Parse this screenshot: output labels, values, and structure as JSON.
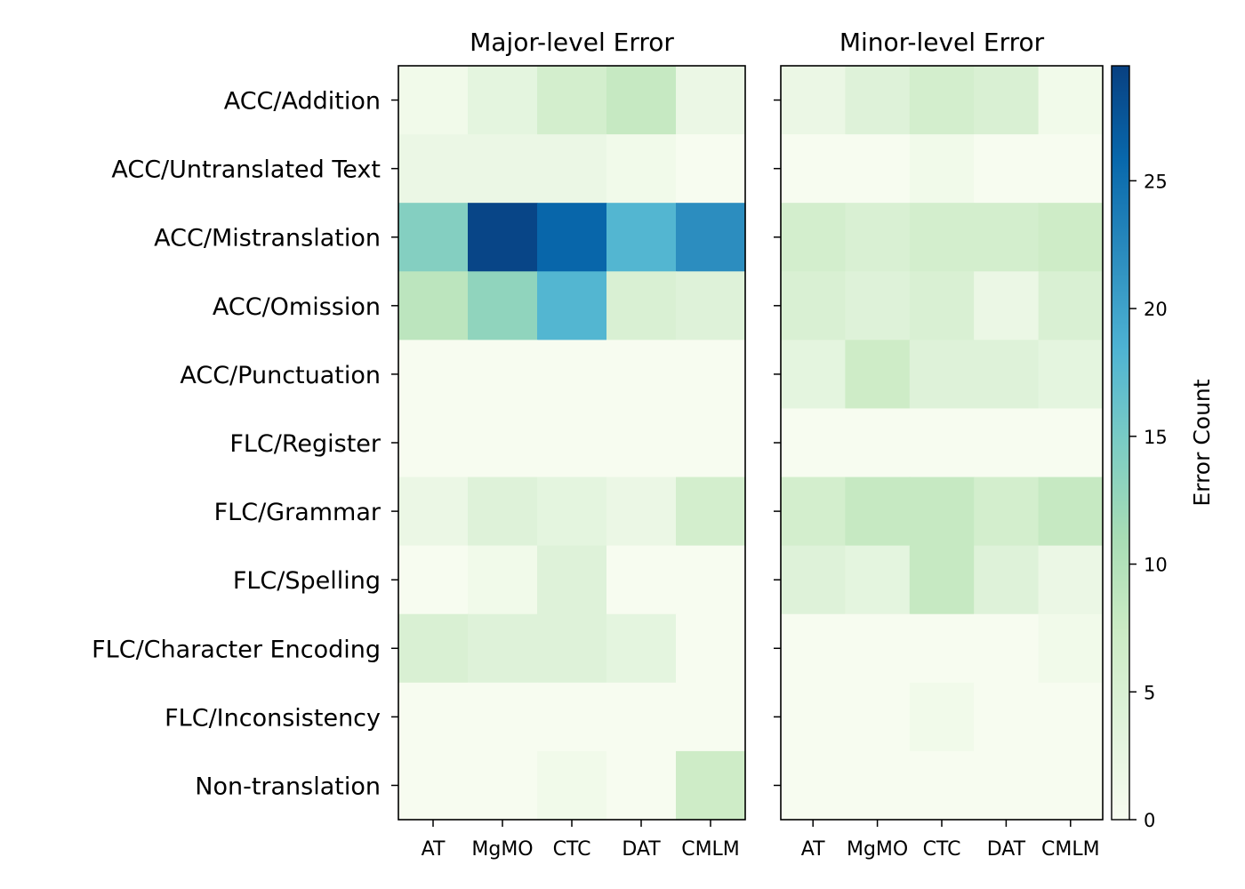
{
  "chart_data": {
    "type": "heatmap",
    "colormap": "GnBu",
    "colorbar": {
      "label": "Error Count",
      "min": 0,
      "max": 29.5,
      "ticks": [
        0,
        5,
        10,
        15,
        20,
        25
      ]
    },
    "row_labels": [
      "ACC/Addition",
      "ACC/Untranslated Text",
      "ACC/Mistranslation",
      "ACC/Omission",
      "ACC/Punctuation",
      "FLC/Register",
      "FLC/Grammar",
      "FLC/Spelling",
      "FLC/Character Encoding",
      "FLC/Inconsistency",
      "Non-translation"
    ],
    "panels": [
      {
        "title": "Major-level Error",
        "columns": [
          "AT",
          "MgMO",
          "CTC",
          "DAT",
          "CMLM"
        ],
        "values": [
          [
            1,
            3,
            6,
            8,
            2
          ],
          [
            2,
            2,
            2,
            1,
            0
          ],
          [
            14,
            29,
            26,
            18,
            22
          ],
          [
            9,
            13,
            18,
            5,
            4
          ],
          [
            0,
            0,
            0,
            0,
            0
          ],
          [
            0,
            0,
            0,
            0,
            0
          ],
          [
            2,
            4,
            3,
            2,
            6
          ],
          [
            0,
            1,
            4,
            0,
            0
          ],
          [
            5,
            4,
            4,
            3,
            0
          ],
          [
            0,
            0,
            0,
            0,
            0
          ],
          [
            0,
            0,
            1,
            0,
            7
          ]
        ]
      },
      {
        "title": "Minor-level Error",
        "columns": [
          "AT",
          "MgMO",
          "CTC",
          "DAT",
          "CMLM"
        ],
        "values": [
          [
            2,
            4,
            6,
            5,
            1
          ],
          [
            0,
            0,
            1,
            0,
            0
          ],
          [
            6,
            5,
            6,
            6,
            7
          ],
          [
            5,
            4,
            5,
            2,
            5
          ],
          [
            3,
            7,
            4,
            4,
            3
          ],
          [
            0,
            0,
            0,
            0,
            0
          ],
          [
            6,
            8,
            8,
            6,
            8
          ],
          [
            4,
            3,
            8,
            4,
            2
          ],
          [
            0,
            0,
            0,
            0,
            1
          ],
          [
            0,
            0,
            1,
            0,
            0
          ],
          [
            0,
            0,
            0,
            0,
            0
          ]
        ]
      }
    ]
  }
}
